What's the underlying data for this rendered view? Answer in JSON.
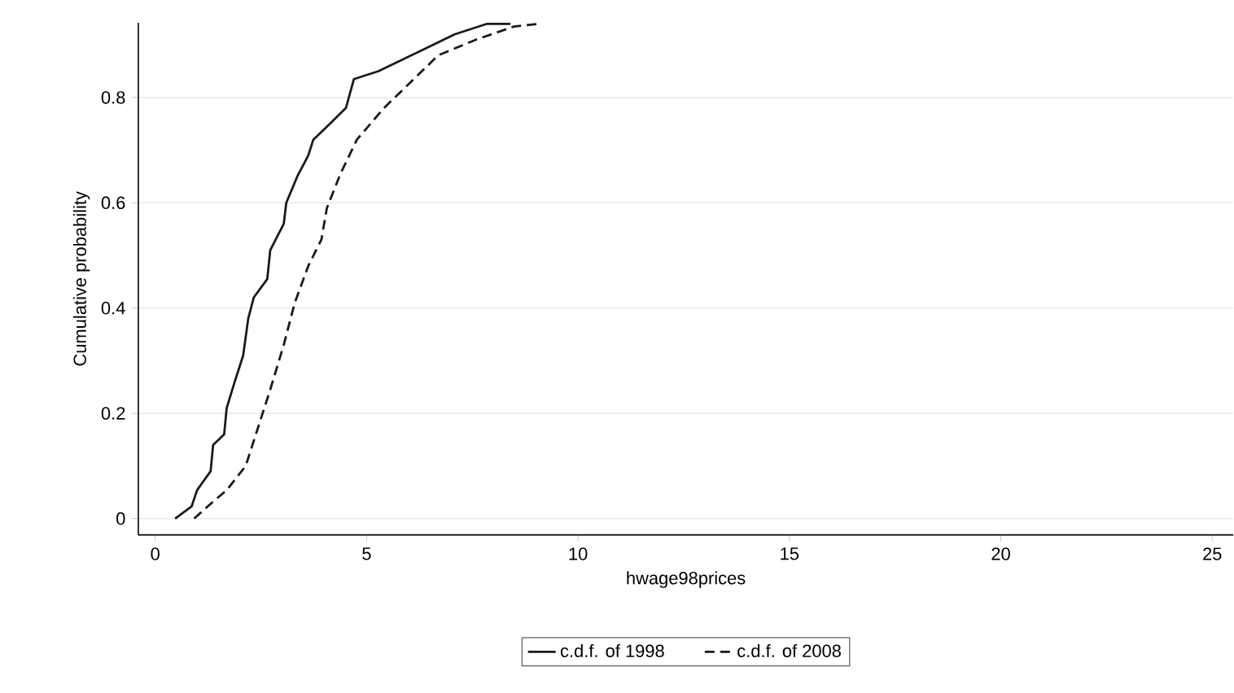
{
  "chart_data": {
    "type": "line",
    "xlabel": "hwage98prices",
    "ylabel": "Cumulative probability",
    "xlim": [
      -0.4,
      25.5
    ],
    "ylim": [
      -0.031,
      0.942
    ],
    "xticks": [
      0,
      5,
      10,
      15,
      20,
      25
    ],
    "yticks": [
      0,
      0.2,
      0.4,
      0.6,
      0.8
    ],
    "grid": "y",
    "legend": "bottom",
    "marker": "none",
    "series": [
      {
        "name": "c.d.f. of 1998",
        "color": "#1a1a1a",
        "line_style": "solid",
        "x": [
          0.47,
          0.86,
          0.99,
          1.31,
          1.37,
          1.63,
          1.69,
          1.88,
          2.08,
          2.2,
          2.33,
          2.65,
          2.72,
          3.04,
          3.1,
          3.36,
          3.62,
          3.74,
          4.13,
          4.51,
          4.7,
          5.28,
          6.31,
          7.08,
          7.85,
          8.4
        ],
        "values": [
          0.0,
          0.023,
          0.054,
          0.09,
          0.14,
          0.16,
          0.21,
          0.26,
          0.31,
          0.38,
          0.42,
          0.455,
          0.51,
          0.56,
          0.6,
          0.65,
          0.69,
          0.72,
          0.75,
          0.78,
          0.835,
          0.85,
          0.89,
          0.92,
          0.94,
          0.94
        ]
      },
      {
        "name": "c.d.f. of 2008",
        "color": "#1a1a1a",
        "line_style": "dashed",
        "x": [
          0.92,
          1.31,
          1.69,
          2.14,
          2.46,
          2.72,
          3.04,
          3.3,
          3.62,
          3.93,
          4.06,
          4.38,
          4.77,
          5.41,
          6.18,
          6.69,
          7.59,
          8.49,
          9.06
        ],
        "values": [
          0.0,
          0.028,
          0.054,
          0.1,
          0.18,
          0.245,
          0.33,
          0.41,
          0.48,
          0.53,
          0.59,
          0.655,
          0.72,
          0.78,
          0.84,
          0.88,
          0.91,
          0.935,
          0.94
        ]
      }
    ]
  }
}
